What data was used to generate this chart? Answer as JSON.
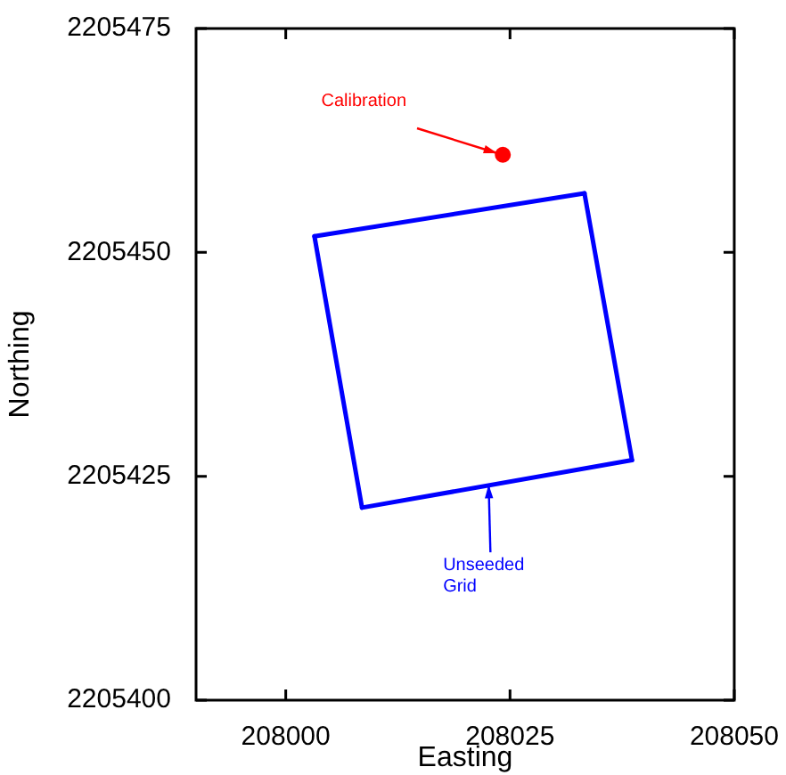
{
  "chart_data": {
    "type": "line",
    "xlabel": "Easting",
    "ylabel": "Northing",
    "xlim": [
      207990,
      208050
    ],
    "xticks": [
      208000,
      208025,
      208050
    ],
    "ylim": [
      2205400,
      2205475
    ],
    "yticks": [
      2205400,
      2205425,
      2205450,
      2205475
    ],
    "grid": false,
    "legend": false,
    "series": [
      {
        "color": "#0000ff",
        "marker": "none",
        "x": [
          208003.2,
          208033.3
        ],
        "values": [
          2205451.8,
          2205456.6
        ]
      },
      {
        "color": "#0000ff",
        "marker": "none",
        "x": [
          208033.3,
          208038.6
        ],
        "values": [
          2205456.6,
          2205426.8
        ]
      },
      {
        "color": "#0000ff",
        "marker": "none",
        "x": [
          208008.5,
          208038.6
        ],
        "values": [
          2205421.5,
          2205426.8
        ]
      },
      {
        "color": "#0000ff",
        "marker": "none",
        "x": [
          208003.2,
          208008.5
        ],
        "values": [
          2205451.8,
          2205421.5
        ]
      },
      {
        "type": "scatter",
        "color": "#ff0000",
        "marker": "circle",
        "x": [
          208024.2
        ],
        "values": [
          2205460.9
        ]
      }
    ],
    "annotations": [
      {
        "text": "Calibration",
        "x": 208024.2,
        "y": 2205460.9
      },
      {
        "text": "Unseeded\nGrid",
        "x": 208022.7,
        "y": 2205424.0
      }
    ]
  }
}
